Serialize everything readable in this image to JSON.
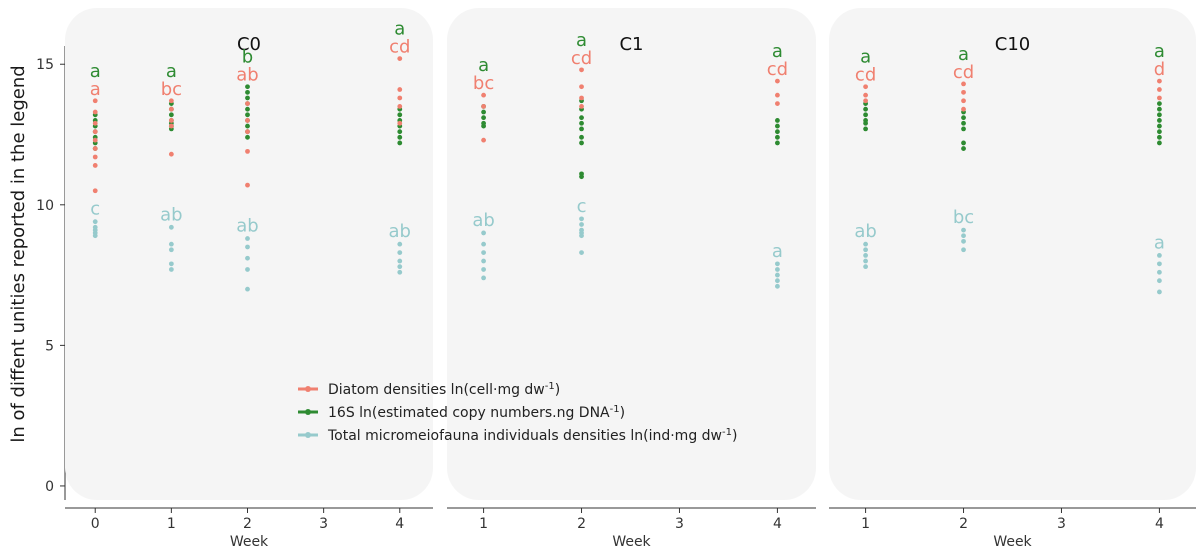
{
  "chart_data": {
    "type": "scatter",
    "ylabel": "ln of diffent unities reported in the legend",
    "xlabel": "Week",
    "ylim": [
      -0.5,
      17
    ],
    "yticks": [
      0,
      5,
      10,
      15
    ],
    "colors": {
      "diatom": "#f08070",
      "bacteria": "#2e8b32",
      "meiofauna": "#96cacc",
      "panel_bg": "#f5f5f5"
    },
    "legend": {
      "placement": "inside-center",
      "entries": [
        {
          "key": "diatom",
          "prefix": "Diatom densities ln(cell·mg dw",
          "sup": "-1",
          "suffix": ")"
        },
        {
          "key": "bacteria",
          "prefix": "16S ln(estimated copy numbers.ng DNA",
          "sup": "-1",
          "suffix": ")"
        },
        {
          "key": "meiofauna",
          "prefix": "Total micromeiofauna individuals densities ln(ind·mg dw",
          "sup": "-1",
          "suffix": ")"
        }
      ]
    },
    "panels": [
      {
        "title": "C0",
        "xlim": [
          -0.2,
          4.2
        ],
        "xticks": [
          0,
          1,
          2,
          3,
          4
        ],
        "groups": [
          {
            "week": 0,
            "diatom": [
              13.7,
              13.3,
              12.9,
              12.6,
              12.3,
              12.0,
              11.7,
              11.4,
              10.5
            ],
            "bacteria": [
              13.2,
              13.0,
              12.8,
              12.6,
              12.4,
              12.2,
              12.0
            ],
            "meiofauna": [
              9.4,
              9.2,
              9.1,
              9.0,
              8.9
            ],
            "letters": {
              "bacteria": "a",
              "diatom": "a",
              "meiofauna": "c"
            }
          },
          {
            "week": 1,
            "diatom": [
              13.7,
              13.4,
              13.0,
              12.8,
              11.8
            ],
            "bacteria": [
              13.6,
              13.4,
              13.2,
              13.0,
              12.9,
              12.8,
              12.7
            ],
            "meiofauna": [
              9.2,
              8.6,
              8.4,
              7.9,
              7.7
            ],
            "letters": {
              "bacteria": "a",
              "diatom": "bc",
              "meiofauna": "ab"
            }
          },
          {
            "week": 2,
            "diatom": [
              13.6,
              13.0,
              12.6,
              11.9,
              10.7
            ],
            "bacteria": [
              14.2,
              14.0,
              13.8,
              13.6,
              13.4,
              13.2,
              13.0,
              12.8,
              12.6,
              12.4
            ],
            "meiofauna": [
              8.8,
              8.5,
              8.1,
              7.7,
              7.0
            ],
            "letters": {
              "bacteria": "b",
              "diatom": "ab",
              "meiofauna": "ab"
            }
          },
          {
            "week": 4,
            "diatom": [
              15.2,
              14.1,
              13.8,
              13.5,
              12.9
            ],
            "bacteria": [
              13.4,
              13.2,
              13.0,
              12.8,
              12.6,
              12.4,
              12.2
            ],
            "meiofauna": [
              8.6,
              8.3,
              8.0,
              7.8,
              7.6
            ],
            "letters": {
              "bacteria": "a",
              "diatom": "cd",
              "meiofauna": "ab"
            }
          }
        ]
      },
      {
        "title": "C1",
        "xlim": [
          0.8,
          4.2
        ],
        "xticks": [
          1,
          2,
          3,
          4
        ],
        "groups": [
          {
            "week": 1,
            "diatom": [
              13.9,
              13.5,
              12.3
            ],
            "bacteria": [
              13.5,
              13.3,
              13.1,
              12.9,
              12.8
            ],
            "meiofauna": [
              9.0,
              8.6,
              8.3,
              8.0,
              7.7,
              7.4
            ],
            "letters": {
              "bacteria": "a",
              "diatom": "bc",
              "meiofauna": "ab"
            }
          },
          {
            "week": 2,
            "diatom": [
              14.8,
              14.2,
              13.8,
              13.5
            ],
            "bacteria": [
              13.7,
              13.4,
              13.1,
              12.9,
              12.7,
              12.4,
              12.2,
              11.1,
              11.0
            ],
            "meiofauna": [
              9.5,
              9.3,
              9.1,
              9.0,
              8.9,
              8.3
            ],
            "letters": {
              "bacteria": "a",
              "diatom": "cd",
              "meiofauna": "c"
            }
          },
          {
            "week": 4,
            "diatom": [
              14.4,
              13.9,
              13.6
            ],
            "bacteria": [
              13.0,
              12.8,
              12.6,
              12.4,
              12.2
            ],
            "meiofauna": [
              7.9,
              7.7,
              7.5,
              7.3,
              7.1
            ],
            "letters": {
              "bacteria": "a",
              "diatom": "cd",
              "meiofauna": "a"
            }
          }
        ]
      },
      {
        "title": "C10",
        "xlim": [
          0.8,
          4.2
        ],
        "xticks": [
          1,
          2,
          3,
          4
        ],
        "groups": [
          {
            "week": 1,
            "diatom": [
              14.2,
              13.9,
              13.7
            ],
            "bacteria": [
              13.6,
              13.4,
              13.2,
              13.0,
              12.9,
              12.7
            ],
            "meiofauna": [
              8.6,
              8.4,
              8.2,
              8.0,
              7.8
            ],
            "letters": {
              "bacteria": "a",
              "diatom": "cd",
              "meiofauna": "ab"
            }
          },
          {
            "week": 2,
            "diatom": [
              14.3,
              14.0,
              13.7,
              13.4
            ],
            "bacteria": [
              13.3,
              13.1,
              12.9,
              12.7,
              12.2,
              12.0
            ],
            "meiofauna": [
              9.1,
              8.9,
              8.7,
              8.4
            ],
            "letters": {
              "bacteria": "a",
              "diatom": "cd",
              "meiofauna": "bc"
            }
          },
          {
            "week": 4,
            "diatom": [
              14.4,
              14.1,
              13.8
            ],
            "bacteria": [
              13.6,
              13.4,
              13.2,
              13.0,
              12.8,
              12.6,
              12.4,
              12.2
            ],
            "meiofauna": [
              8.2,
              7.9,
              7.6,
              7.3,
              6.9
            ],
            "letters": {
              "bacteria": "a",
              "diatom": "d",
              "meiofauna": "a"
            }
          }
        ]
      }
    ]
  }
}
